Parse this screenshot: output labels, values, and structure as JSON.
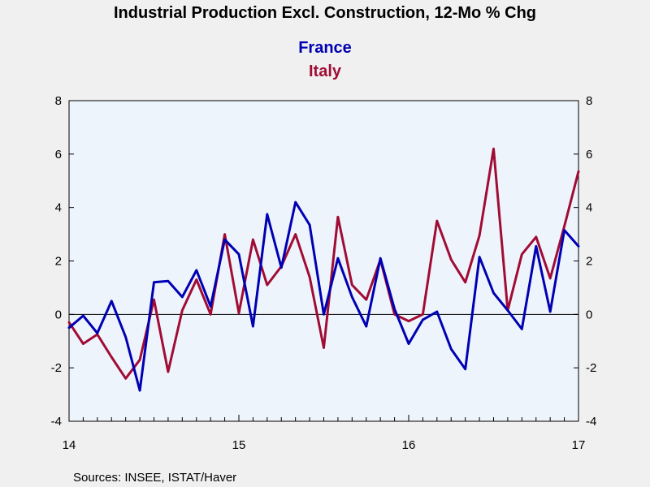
{
  "chart_data": {
    "type": "line",
    "title": "Industrial Production Excl. Construction, 12-Mo % Chg",
    "source": "Sources:  INSEE, ISTAT/Haver",
    "x_start": "2014-01",
    "x_tick_labels": [
      "14",
      "15",
      "16",
      "17"
    ],
    "ylim": [
      -4,
      8
    ],
    "y_ticks": [
      "-4",
      "-2",
      "0",
      "2",
      "4",
      "6",
      "8"
    ],
    "legend_placement": "top-center",
    "series": [
      {
        "name": "France",
        "color": "#0000b3",
        "values": [
          -0.5,
          -0.05,
          -0.7,
          0.5,
          -0.85,
          -2.85,
          1.2,
          1.25,
          0.65,
          1.65,
          0.3,
          2.8,
          2.25,
          -0.45,
          3.75,
          1.75,
          4.2,
          3.35,
          0.0,
          2.1,
          0.65,
          -0.45,
          2.1,
          0.2,
          -1.1,
          -0.2,
          0.1,
          -1.3,
          -2.05,
          2.15,
          0.8,
          0.15,
          -0.55,
          2.55,
          0.1,
          3.15,
          2.55
        ]
      },
      {
        "name": "Italy",
        "color": "#a00c34",
        "values": [
          -0.3,
          -1.1,
          -0.75,
          -1.6,
          -2.4,
          -1.7,
          0.55,
          -2.15,
          0.15,
          1.3,
          0.0,
          3.0,
          0.05,
          2.8,
          1.1,
          1.8,
          3.0,
          1.4,
          -1.25,
          3.65,
          1.1,
          0.55,
          2.05,
          0.0,
          -0.25,
          0.0,
          3.5,
          2.05,
          1.2,
          2.95,
          6.2,
          0.15,
          2.25,
          2.9,
          1.35,
          3.3,
          5.35
        ]
      }
    ]
  }
}
